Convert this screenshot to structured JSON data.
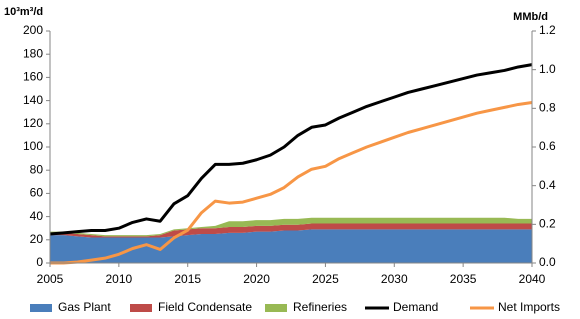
{
  "chart_data": {
    "type": "combo",
    "stacked": true,
    "y_label": "10³m³/d",
    "y2_label": "MMb/d",
    "x": [
      2005,
      2006,
      2007,
      2008,
      2009,
      2010,
      2011,
      2012,
      2013,
      2014,
      2015,
      2016,
      2017,
      2018,
      2019,
      2020,
      2021,
      2022,
      2023,
      2024,
      2025,
      2026,
      2027,
      2028,
      2029,
      2030,
      2031,
      2032,
      2033,
      2034,
      2035,
      2036,
      2037,
      2038,
      2039,
      2040
    ],
    "xlim": [
      2005,
      2040
    ],
    "xticks": [
      2005,
      2010,
      2015,
      2020,
      2025,
      2030,
      2035,
      2040
    ],
    "ylim": [
      0,
      200
    ],
    "yticks": [
      0,
      20,
      40,
      60,
      80,
      100,
      120,
      140,
      160,
      180,
      200
    ],
    "y2lim": [
      0,
      1.2
    ],
    "y2ticks": [
      {
        "value": 0,
        "label": "0.0"
      },
      0.2,
      0.4,
      0.6,
      0.8,
      {
        "value": 1,
        "label": "1.0"
      },
      1.2
    ],
    "series": [
      {
        "name": "Gas Plant",
        "kind": "area",
        "color": "#4a7ebb",
        "values": [
          24,
          24,
          23,
          22,
          22,
          22,
          22,
          22,
          22,
          23,
          24,
          25,
          25,
          26,
          26,
          27,
          27,
          28,
          28,
          29,
          29,
          29,
          29,
          29,
          29,
          29,
          29,
          29,
          29,
          29,
          29,
          29,
          29,
          29,
          29,
          29
        ]
      },
      {
        "name": "Field Condensate",
        "kind": "area",
        "color": "#be4b48",
        "values": [
          2,
          2,
          2,
          2,
          1,
          1,
          1,
          1,
          2,
          5,
          5,
          5,
          5,
          5,
          5,
          5,
          5,
          5,
          5,
          5,
          5,
          5,
          5,
          5,
          5,
          5,
          5,
          5,
          5,
          5,
          5,
          5,
          5,
          5,
          5,
          5
        ]
      },
      {
        "name": "Refineries",
        "kind": "area",
        "color": "#98b954",
        "values": [
          1,
          1,
          1,
          1,
          1,
          1,
          1,
          1,
          1,
          1,
          1,
          1,
          2,
          5,
          5,
          5,
          5,
          5,
          5,
          5,
          5,
          5,
          5,
          5,
          5,
          5,
          5,
          5,
          5,
          5,
          5,
          5,
          5,
          5,
          4,
          4
        ]
      },
      {
        "name": "Demand",
        "kind": "line",
        "color": "#000000",
        "values": [
          25,
          26,
          27,
          28,
          28,
          30,
          35,
          38,
          36,
          51,
          58,
          73,
          85,
          85,
          86,
          89,
          93,
          100,
          110,
          117,
          119,
          125,
          130,
          135,
          139,
          143,
          147,
          150,
          153,
          156,
          159,
          162,
          164,
          166,
          169,
          171
        ]
      },
      {
        "name": "Net Imports",
        "kind": "line",
        "axis": "y2",
        "color": "#f79646",
        "values": [
          0,
          0,
          0.005,
          0.015,
          0.025,
          0.045,
          0.075,
          0.095,
          0.07,
          0.13,
          0.17,
          0.26,
          0.32,
          0.31,
          0.315,
          0.335,
          0.355,
          0.39,
          0.445,
          0.485,
          0.5,
          0.54,
          0.57,
          0.6,
          0.625,
          0.65,
          0.675,
          0.695,
          0.715,
          0.735,
          0.755,
          0.775,
          0.79,
          0.805,
          0.82,
          0.83
        ]
      }
    ]
  }
}
